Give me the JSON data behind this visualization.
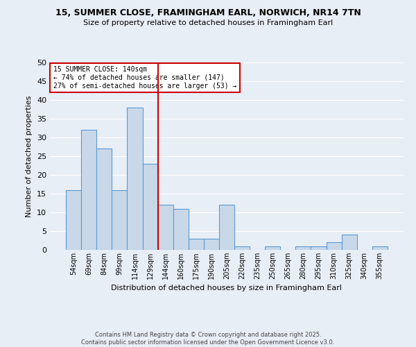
{
  "title": "15, SUMMER CLOSE, FRAMINGHAM EARL, NORWICH, NR14 7TN",
  "subtitle": "Size of property relative to detached houses in Framingham Earl",
  "xlabel": "Distribution of detached houses by size in Framingham Earl",
  "ylabel": "Number of detached properties",
  "footer": "Contains HM Land Registry data © Crown copyright and database right 2025.\nContains public sector information licensed under the Open Government Licence v3.0.",
  "categories": [
    "54sqm",
    "69sqm",
    "84sqm",
    "99sqm",
    "114sqm",
    "129sqm",
    "144sqm",
    "160sqm",
    "175sqm",
    "190sqm",
    "205sqm",
    "220sqm",
    "235sqm",
    "250sqm",
    "265sqm",
    "280sqm",
    "295sqm",
    "310sqm",
    "325sqm",
    "340sqm",
    "355sqm"
  ],
  "values": [
    16,
    32,
    27,
    16,
    38,
    23,
    12,
    11,
    3,
    3,
    12,
    1,
    0,
    1,
    0,
    1,
    1,
    2,
    4,
    0,
    1
  ],
  "bar_color": "#c8d8e8",
  "bar_edge_color": "#5b9bd5",
  "background_color": "#e8eef6",
  "grid_color": "#ffffff",
  "vline_x": 5.5,
  "vline_color": "#cc0000",
  "annotation_text": "15 SUMMER CLOSE: 140sqm\n← 74% of detached houses are smaller (147)\n27% of semi-detached houses are larger (53) →",
  "annotation_box_color": "#cc0000",
  "ylim": [
    0,
    50
  ],
  "yticks": [
    0,
    5,
    10,
    15,
    20,
    25,
    30,
    35,
    40,
    45,
    50
  ]
}
